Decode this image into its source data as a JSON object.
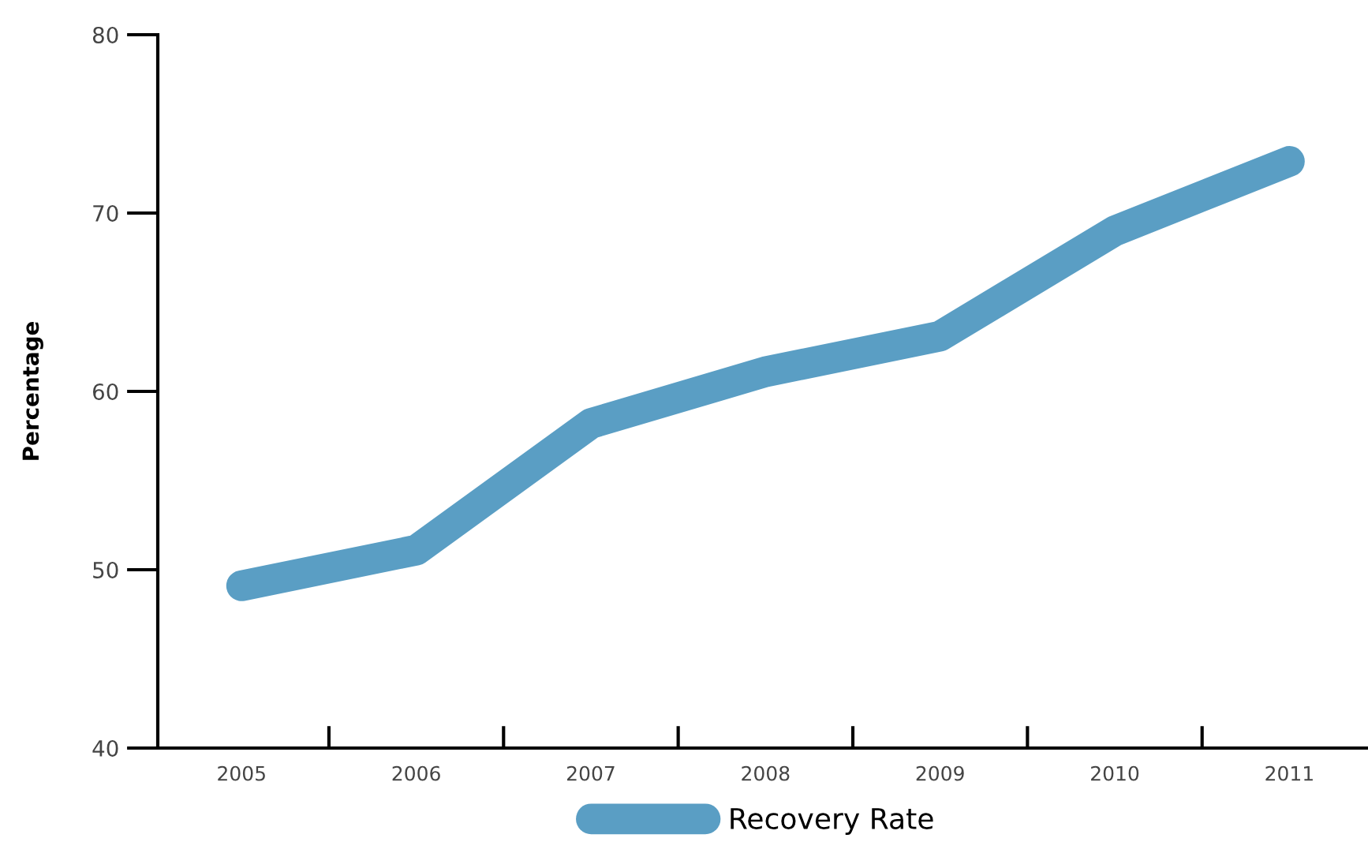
{
  "chart_data": {
    "type": "line",
    "ylabel": "Percentage",
    "categories": [
      "2005",
      "2006",
      "2007",
      "2008",
      "2009",
      "2010",
      "2011"
    ],
    "series": [
      {
        "name": "Recovery Rate",
        "color": "#5a9ec4",
        "values": [
          49.1,
          51.1,
          58.2,
          61.1,
          63.1,
          69.0,
          72.9
        ]
      }
    ],
    "ylim": [
      40,
      80
    ],
    "yticks": [
      40,
      50,
      60,
      70,
      80
    ],
    "grid": false,
    "legend": "bottom",
    "line_style": "solid"
  }
}
